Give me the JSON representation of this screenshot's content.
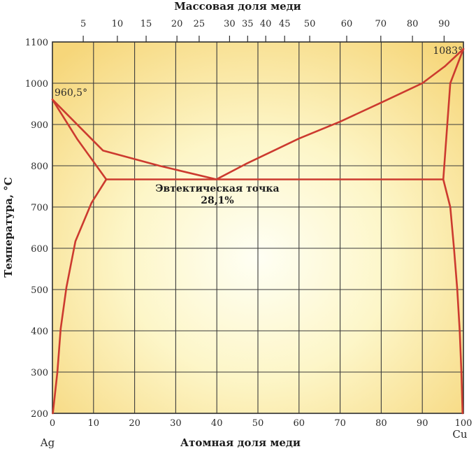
{
  "chart_data": {
    "type": "line",
    "title": "",
    "xlabel": "Атомная доля меди",
    "x2label": "Массовая доля меди",
    "ylabel": "Температура, °C",
    "xlim": [
      0,
      100
    ],
    "ylim": [
      200,
      1100
    ],
    "grid": true,
    "x_ticks": [
      0,
      10,
      20,
      30,
      40,
      50,
      60,
      70,
      80,
      90,
      100
    ],
    "y_ticks": [
      200,
      300,
      400,
      500,
      600,
      700,
      800,
      900,
      1000,
      1100
    ],
    "x2_ticks": [
      {
        "label": "5",
        "x": 7.5
      },
      {
        "label": "10",
        "x": 15.8
      },
      {
        "label": "15",
        "x": 22.8
      },
      {
        "label": "20",
        "x": 30.3
      },
      {
        "label": "25",
        "x": 35.7
      },
      {
        "label": "30",
        "x": 43.1
      },
      {
        "label": "35",
        "x": 47.5
      },
      {
        "label": "40",
        "x": 51.9
      },
      {
        "label": "45",
        "x": 56.5
      },
      {
        "label": "50",
        "x": 62.6
      },
      {
        "label": "60",
        "x": 71.6
      },
      {
        "label": "70",
        "x": 79.9
      },
      {
        "label": "80",
        "x": 87.6
      },
      {
        "label": "90",
        "x": 95.3
      }
    ],
    "series": [
      {
        "id": "liquidus-ag",
        "values": [
          [
            0,
            960.5
          ],
          [
            12.3,
            837
          ],
          [
            26,
            800
          ],
          [
            39.9,
            767
          ]
        ]
      },
      {
        "id": "liquidus-cu",
        "values": [
          [
            39.9,
            767
          ],
          [
            47,
            804
          ],
          [
            60,
            866
          ],
          [
            70,
            907
          ],
          [
            80,
            953
          ],
          [
            90,
            1000
          ],
          [
            95.5,
            1041
          ],
          [
            100,
            1083
          ]
        ]
      },
      {
        "id": "solidus-ag",
        "values": [
          [
            0,
            960.5
          ],
          [
            6,
            865
          ],
          [
            13.1,
            767
          ]
        ]
      },
      {
        "id": "solvus-ag",
        "values": [
          [
            13.1,
            767
          ],
          [
            9.5,
            710
          ],
          [
            5.6,
            617
          ],
          [
            3.4,
            505
          ],
          [
            2,
            405
          ],
          [
            1.2,
            300
          ],
          [
            0.1,
            200
          ]
        ]
      },
      {
        "id": "eutectic-line",
        "values": [
          [
            13.1,
            767
          ],
          [
            95.1,
            767
          ]
        ]
      },
      {
        "id": "solidus-cu",
        "values": [
          [
            95.1,
            767
          ],
          [
            96.8,
            1000
          ],
          [
            100,
            1083
          ]
        ]
      },
      {
        "id": "solvus-cu",
        "values": [
          [
            95.1,
            767
          ],
          [
            96.8,
            700
          ],
          [
            97.7,
            600
          ],
          [
            98.5,
            500
          ],
          [
            99.1,
            400
          ],
          [
            99.5,
            300
          ],
          [
            99.8,
            200
          ]
        ]
      }
    ],
    "annotations": [
      {
        "text": "960,5°",
        "x": 0,
        "y": 960.5
      },
      {
        "text": "1083°",
        "x": 100,
        "y": 1083
      },
      {
        "text": "Эвтектическая точка",
        "x": 39.9,
        "y": 767
      },
      {
        "text": "28,1%",
        "x": 39.9,
        "y": 767
      }
    ],
    "corner_labels": {
      "left": "Ag",
      "right": "Cu"
    },
    "colors": {
      "curve": "#cc3a2f",
      "grid": "#3a3a3a",
      "frame": "#2e2e2e",
      "background_center": "#fffff2",
      "background_edge": "#f7d778"
    }
  }
}
